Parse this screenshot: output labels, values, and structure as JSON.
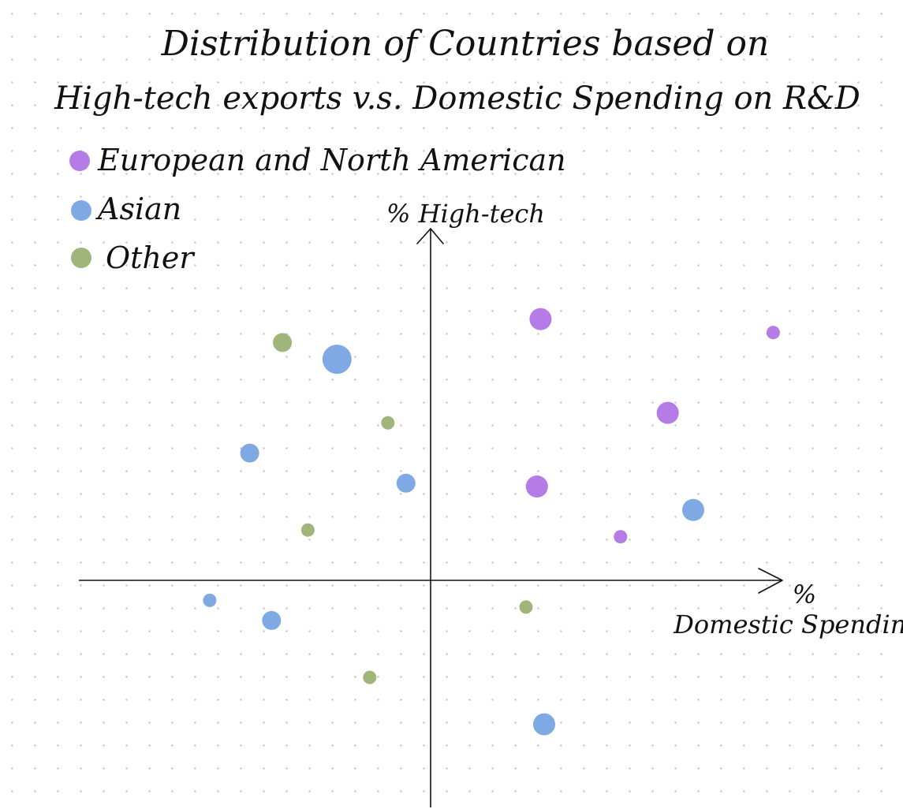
{
  "chart_data": {
    "type": "scatter",
    "title": [
      "Distribution of Countries based on",
      "High-tech exports  v.s. Domestic Spending on R&D"
    ],
    "xlabel": [
      "%",
      "Domestic Spending"
    ],
    "ylabel": "% High-tech",
    "xlim": [
      -10,
      9.2
    ],
    "ylim": [
      -6.6,
      10.4
    ],
    "grid": "dotted paper background",
    "axes": "crosshair through origin, arrows on positive ends",
    "legend_position": "top-left",
    "colors": {
      "eu_na": "#b57be6",
      "asian": "#7fa9e3",
      "other": "#9fb57a"
    },
    "series": [
      {
        "name": "European and North American",
        "key": "eu_na",
        "points": [
          {
            "x": 2.7,
            "y": 7.7,
            "size": "large"
          },
          {
            "x": 6.2,
            "y": 4.9,
            "size": "large"
          },
          {
            "x": 2.6,
            "y": 2.7,
            "size": "large"
          },
          {
            "x": 9.1,
            "y": 7.3,
            "size": "small"
          },
          {
            "x": 4.9,
            "y": 1.2,
            "size": "small"
          }
        ]
      },
      {
        "name": "Asian",
        "key": "asian",
        "points": [
          {
            "x": -2.9,
            "y": 6.5,
            "size": "xlarge"
          },
          {
            "x": -5.3,
            "y": 3.7,
            "size": "medium"
          },
          {
            "x": -1.0,
            "y": 2.8,
            "size": "medium"
          },
          {
            "x": 6.9,
            "y": 2.0,
            "size": "large"
          },
          {
            "x": -6.4,
            "y": -0.7,
            "size": "small"
          },
          {
            "x": -4.7,
            "y": -1.3,
            "size": "medium"
          },
          {
            "x": 2.8,
            "y": -4.4,
            "size": "large"
          }
        ]
      },
      {
        "name": "Other",
        "key": "other",
        "points": [
          {
            "x": -4.4,
            "y": 7.0,
            "size": "medium"
          },
          {
            "x": -1.5,
            "y": 4.6,
            "size": "small"
          },
          {
            "x": -3.7,
            "y": 1.4,
            "size": "small"
          },
          {
            "x": 2.3,
            "y": -0.9,
            "size": "small"
          },
          {
            "x": -2.0,
            "y": -3.0,
            "size": "small"
          }
        ]
      }
    ]
  }
}
